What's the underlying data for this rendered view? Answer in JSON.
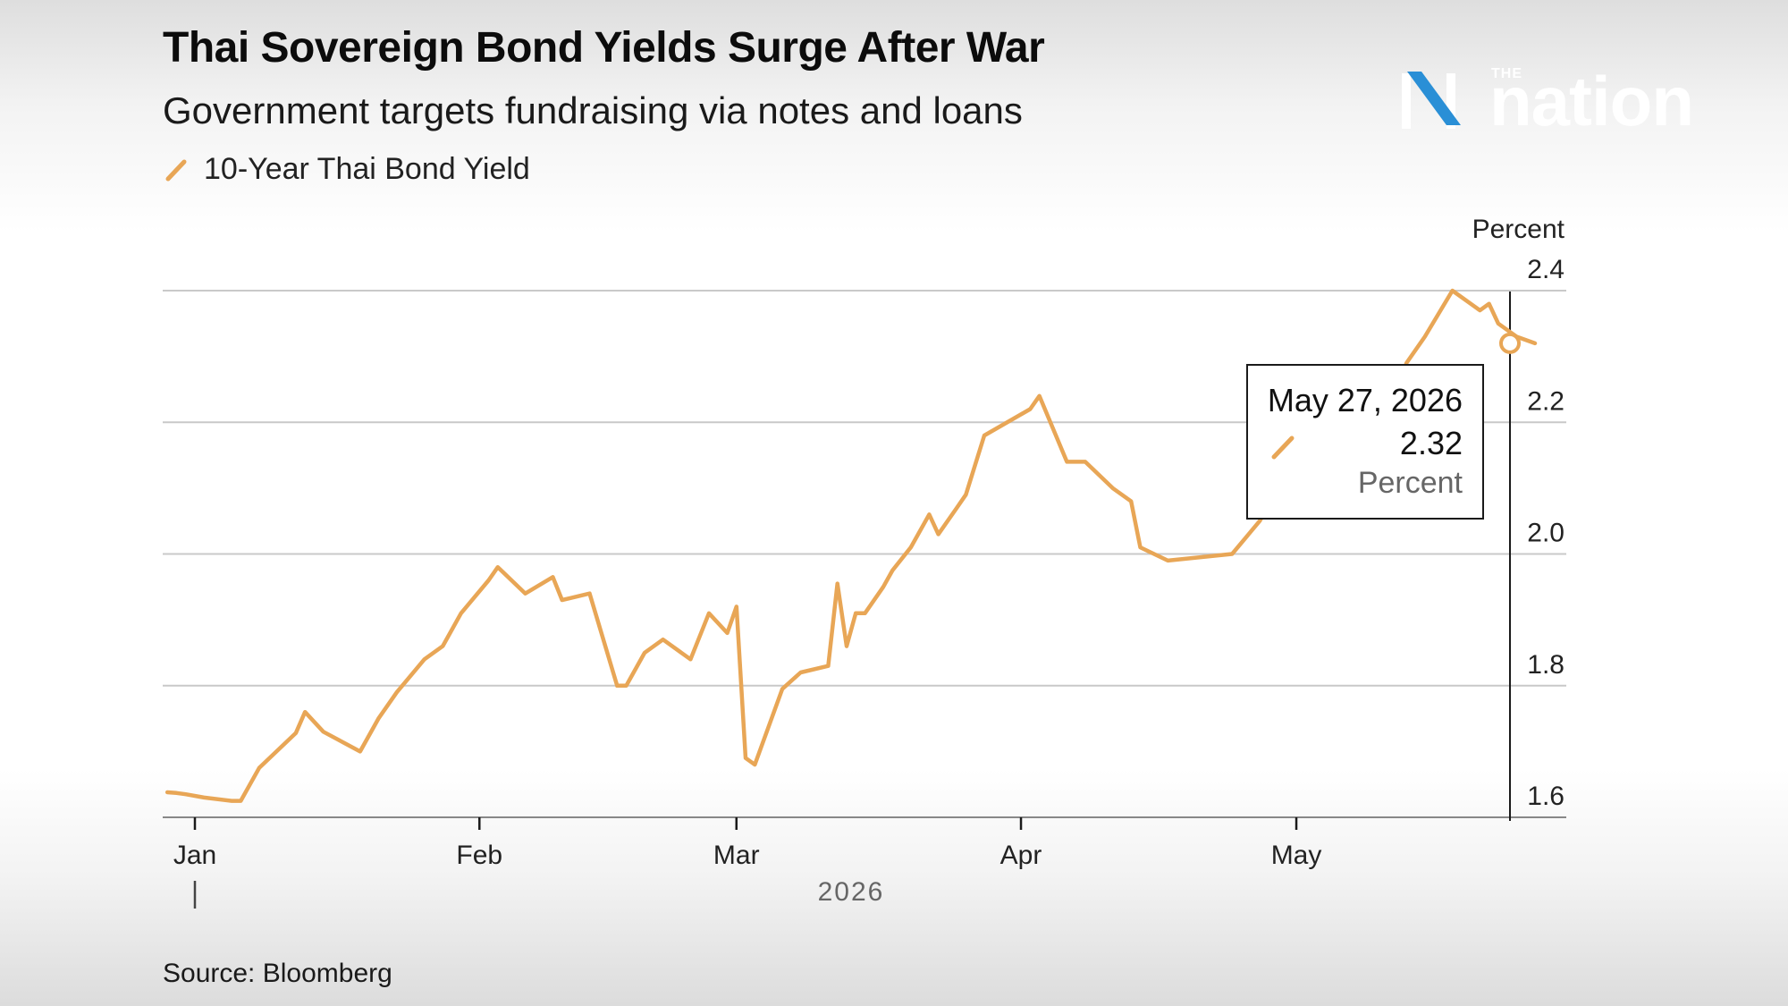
{
  "header": {
    "title": "Thai Sovereign Bond Yields Surge After War",
    "subtitle": "Government targets fundraising via notes and loans",
    "legend_label": "10-Year Thai Bond Yield"
  },
  "logo": {
    "small_text": "THE",
    "word": "nation"
  },
  "tooltip": {
    "date": "May 27, 2026",
    "value": "2.32",
    "unit": "Percent"
  },
  "footer": {
    "source": "Source: Bloomberg"
  },
  "colors": {
    "series": "#e8a656",
    "grid": "#c9c9c9",
    "axis": "#1a1a1a",
    "logo_accent": "#2a8fd6"
  },
  "chart_data": {
    "type": "line",
    "title": "Thai Sovereign Bond Yields Surge After War",
    "subtitle": "Government targets fundraising via notes and loans",
    "xlabel": "2026",
    "ylabel": "Percent",
    "ylim": [
      1.6,
      2.4
    ],
    "yticks": [
      "2.4",
      "2.2",
      "2.0",
      "1.8",
      "1.6"
    ],
    "y_axis_side": "right",
    "grid": true,
    "legend_position": "top-left",
    "x_ticks": [
      {
        "label": "Jan",
        "date": "2026-01-01"
      },
      {
        "label": "Feb",
        "date": "2026-02-01"
      },
      {
        "label": "Mar",
        "date": "2026-03-01"
      },
      {
        "label": "Apr",
        "date": "2026-04-01"
      },
      {
        "label": "May",
        "date": "2026-05-01"
      }
    ],
    "x_range": [
      "2025-12-29",
      "2026-05-31"
    ],
    "series": [
      {
        "name": "10-Year Thai Bond Yield",
        "color": "#e8a656",
        "x": [
          "2025-12-29",
          "2025-12-30",
          "2025-12-31",
          "2026-01-02",
          "2026-01-05",
          "2026-01-06",
          "2026-01-08",
          "2026-01-12",
          "2026-01-13",
          "2026-01-15",
          "2026-01-19",
          "2026-01-21",
          "2026-01-23",
          "2026-01-26",
          "2026-01-28",
          "2026-01-30",
          "2026-02-02",
          "2026-02-03",
          "2026-02-06",
          "2026-02-09",
          "2026-02-10",
          "2026-02-13",
          "2026-02-16",
          "2026-02-17",
          "2026-02-19",
          "2026-02-21",
          "2026-02-24",
          "2026-02-26",
          "2026-02-28",
          "2026-03-01",
          "2026-03-02",
          "2026-03-03",
          "2026-03-06",
          "2026-03-08",
          "2026-03-11",
          "2026-03-12",
          "2026-03-13",
          "2026-03-14",
          "2026-03-15",
          "2026-03-17",
          "2026-03-18",
          "2026-03-20",
          "2026-03-22",
          "2026-03-23",
          "2026-03-25",
          "2026-03-26",
          "2026-03-28",
          "2026-04-02",
          "2026-04-03",
          "2026-04-06",
          "2026-04-08",
          "2026-04-11",
          "2026-04-13",
          "2026-04-14",
          "2026-04-17",
          "2026-04-24",
          "2026-04-27",
          "2026-04-30",
          "2026-05-01",
          "2026-05-04",
          "2026-05-06",
          "2026-05-10",
          "2026-05-13",
          "2026-05-15",
          "2026-05-18",
          "2026-05-21",
          "2026-05-22",
          "2026-05-23",
          "2026-05-24",
          "2026-05-25",
          "2026-05-27"
        ],
        "values": [
          1.638,
          1.637,
          1.635,
          1.63,
          1.625,
          1.625,
          1.675,
          1.728,
          1.76,
          1.73,
          1.7,
          1.75,
          1.79,
          1.84,
          1.86,
          1.91,
          1.96,
          1.98,
          1.94,
          1.965,
          1.93,
          1.94,
          1.8,
          1.8,
          1.85,
          1.87,
          1.84,
          1.91,
          1.88,
          1.92,
          1.69,
          1.68,
          1.795,
          1.82,
          1.83,
          1.955,
          1.86,
          1.91,
          1.91,
          1.95,
          1.975,
          2.01,
          2.06,
          2.03,
          2.07,
          2.09,
          2.18,
          2.22,
          2.24,
          2.14,
          2.14,
          2.1,
          2.08,
          2.01,
          1.99,
          2.0,
          2.05,
          2.12,
          2.06,
          2.11,
          2.13,
          2.14,
          2.29,
          2.33,
          2.4,
          2.37,
          2.38,
          2.35,
          2.34,
          2.33,
          2.32
        ]
      }
    ],
    "highlight": {
      "date": "2026-05-27",
      "value": 2.32
    }
  }
}
